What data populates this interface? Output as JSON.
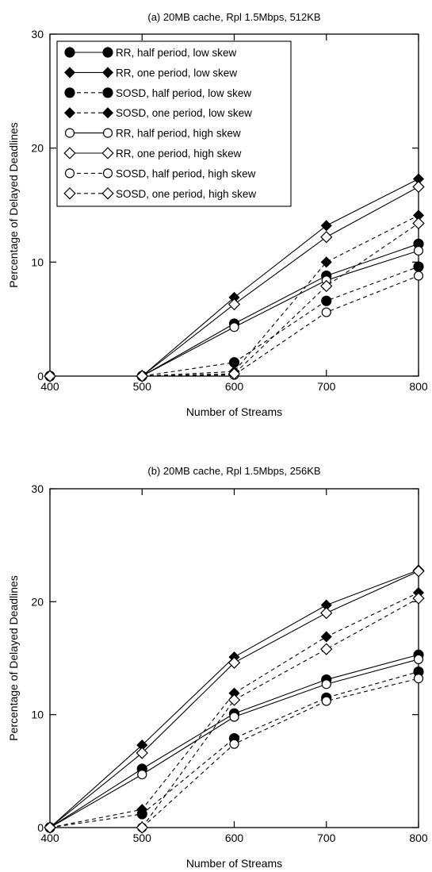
{
  "chart_data": [
    {
      "type": "line",
      "title": "(a)   20MB cache, Rpl 1.5Mbps, 512KB",
      "xlabel": "Number of Streams",
      "ylabel": "Percentage of Delayed Deadlines",
      "x": [
        400,
        500,
        600,
        700,
        800
      ],
      "xlim": [
        400,
        800
      ],
      "ylim": [
        0,
        30
      ],
      "xticks": [
        400,
        500,
        600,
        700,
        800
      ],
      "yticks": [
        0,
        10,
        20,
        30
      ],
      "legend": "top-left",
      "grid": false,
      "series": [
        {
          "name": "RR, half period, low skew",
          "marker": "circle",
          "filled": true,
          "dash": false,
          "values": [
            0,
            0,
            4.6,
            8.8,
            11.6
          ]
        },
        {
          "name": "RR, one period, low skew",
          "marker": "diamond",
          "filled": true,
          "dash": false,
          "values": [
            0,
            0,
            6.9,
            13.2,
            17.3
          ]
        },
        {
          "name": "SOSD, half period, low skew",
          "marker": "circle",
          "filled": true,
          "dash": true,
          "values": [
            0,
            0,
            1.2,
            6.6,
            9.6
          ]
        },
        {
          "name": "SOSD, one period, low skew",
          "marker": "diamond",
          "filled": true,
          "dash": true,
          "values": [
            0,
            0,
            0.4,
            10.0,
            14.1
          ]
        },
        {
          "name": "RR, half period, high skew",
          "marker": "circle",
          "filled": false,
          "dash": false,
          "values": [
            0,
            0,
            4.3,
            8.4,
            11.0
          ]
        },
        {
          "name": "RR, one period, high skew",
          "marker": "diamond",
          "filled": false,
          "dash": false,
          "values": [
            0,
            0,
            6.3,
            12.2,
            16.6
          ]
        },
        {
          "name": "SOSD, half period, high skew",
          "marker": "circle",
          "filled": false,
          "dash": true,
          "values": [
            0,
            0,
            0.1,
            5.6,
            8.8
          ]
        },
        {
          "name": "SOSD, one period, high skew",
          "marker": "diamond",
          "filled": false,
          "dash": true,
          "values": [
            0,
            0,
            0.2,
            7.9,
            13.4
          ]
        }
      ]
    },
    {
      "type": "line",
      "title": "(b)   20MB cache, Rpl 1.5Mbps, 256KB",
      "xlabel": "Number of Streams",
      "ylabel": "Percentage of Delayed Deadlines",
      "x": [
        400,
        500,
        600,
        700,
        800
      ],
      "xlim": [
        400,
        800
      ],
      "ylim": [
        0,
        30
      ],
      "xticks": [
        400,
        500,
        600,
        700,
        800
      ],
      "yticks": [
        0,
        10,
        20,
        30
      ],
      "grid": false,
      "series": [
        {
          "name": "RR, half period, low skew",
          "marker": "circle",
          "filled": true,
          "dash": false,
          "values": [
            0,
            5.2,
            10.1,
            13.1,
            15.3
          ]
        },
        {
          "name": "RR, one period, low skew",
          "marker": "diamond",
          "filled": true,
          "dash": false,
          "values": [
            0,
            7.3,
            15.1,
            19.7,
            22.8
          ]
        },
        {
          "name": "SOSD, half period, low skew",
          "marker": "circle",
          "filled": true,
          "dash": true,
          "values": [
            0,
            1.2,
            7.9,
            11.5,
            13.8
          ]
        },
        {
          "name": "SOSD, one period, low skew",
          "marker": "diamond",
          "filled": true,
          "dash": true,
          "values": [
            0,
            1.6,
            11.9,
            16.9,
            20.8
          ]
        },
        {
          "name": "RR, half period, high skew",
          "marker": "circle",
          "filled": false,
          "dash": false,
          "values": [
            0,
            4.7,
            9.8,
            12.7,
            14.9
          ]
        },
        {
          "name": "RR, one period, high skew",
          "marker": "diamond",
          "filled": false,
          "dash": false,
          "values": [
            0,
            6.6,
            14.6,
            19.0,
            22.7
          ]
        },
        {
          "name": "SOSD, half period, high skew",
          "marker": "circle",
          "filled": false,
          "dash": true,
          "values": [
            0,
            0,
            7.4,
            11.2,
            13.2
          ]
        },
        {
          "name": "SOSD, one period, high skew",
          "marker": "diamond",
          "filled": false,
          "dash": true,
          "values": [
            0,
            0,
            11.3,
            15.8,
            20.3
          ]
        }
      ]
    }
  ]
}
